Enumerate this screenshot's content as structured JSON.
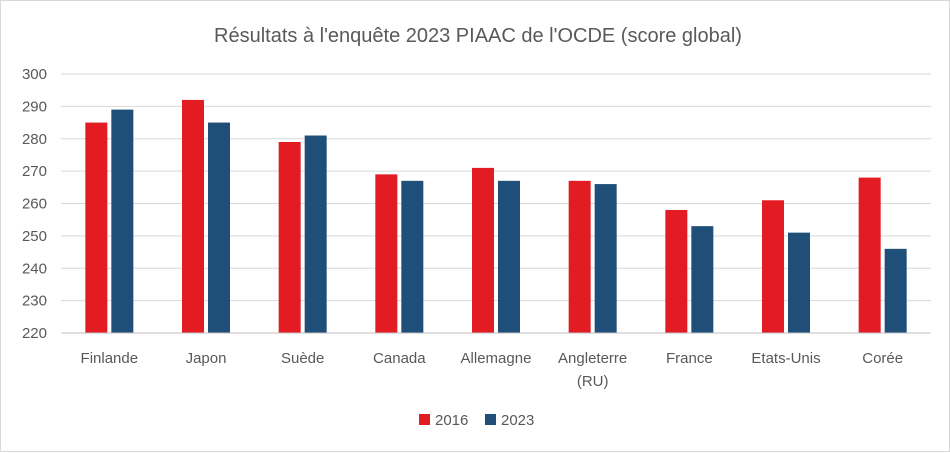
{
  "chart_data": {
    "type": "bar",
    "title": "Résultats à l'enquête 2023 PIAAC de l'OCDE (score global)",
    "categories": [
      [
        "Finlande"
      ],
      [
        "Japon"
      ],
      [
        "Suède"
      ],
      [
        "Canada"
      ],
      [
        "Allemagne"
      ],
      [
        "Angleterre",
        "(RU)"
      ],
      [
        "France"
      ],
      [
        "Etats-Unis"
      ],
      [
        "Corée"
      ]
    ],
    "series": [
      {
        "name": "2016",
        "color": "#e31b23",
        "values": [
          285,
          292,
          279,
          269,
          271,
          267,
          258,
          261,
          268
        ]
      },
      {
        "name": "2023",
        "color": "#1f4e79",
        "values": [
          289,
          285,
          281,
          267,
          267,
          266,
          253,
          251,
          246
        ]
      }
    ],
    "ylim": [
      220,
      300
    ],
    "yticks": [
      220,
      230,
      240,
      250,
      260,
      270,
      280,
      290,
      300
    ],
    "grid": true,
    "legend_position": "bottom"
  }
}
